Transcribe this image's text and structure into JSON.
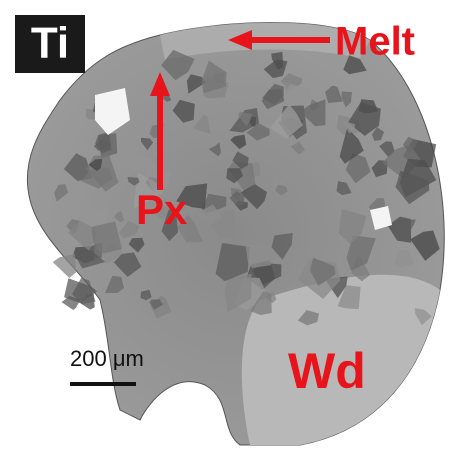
{
  "panel_label": "Ti",
  "annotations": [
    {
      "label": "Melt"
    },
    {
      "label": "Px"
    },
    {
      "label": "Wd"
    }
  ],
  "scale_bar": {
    "label": "200 μm"
  }
}
